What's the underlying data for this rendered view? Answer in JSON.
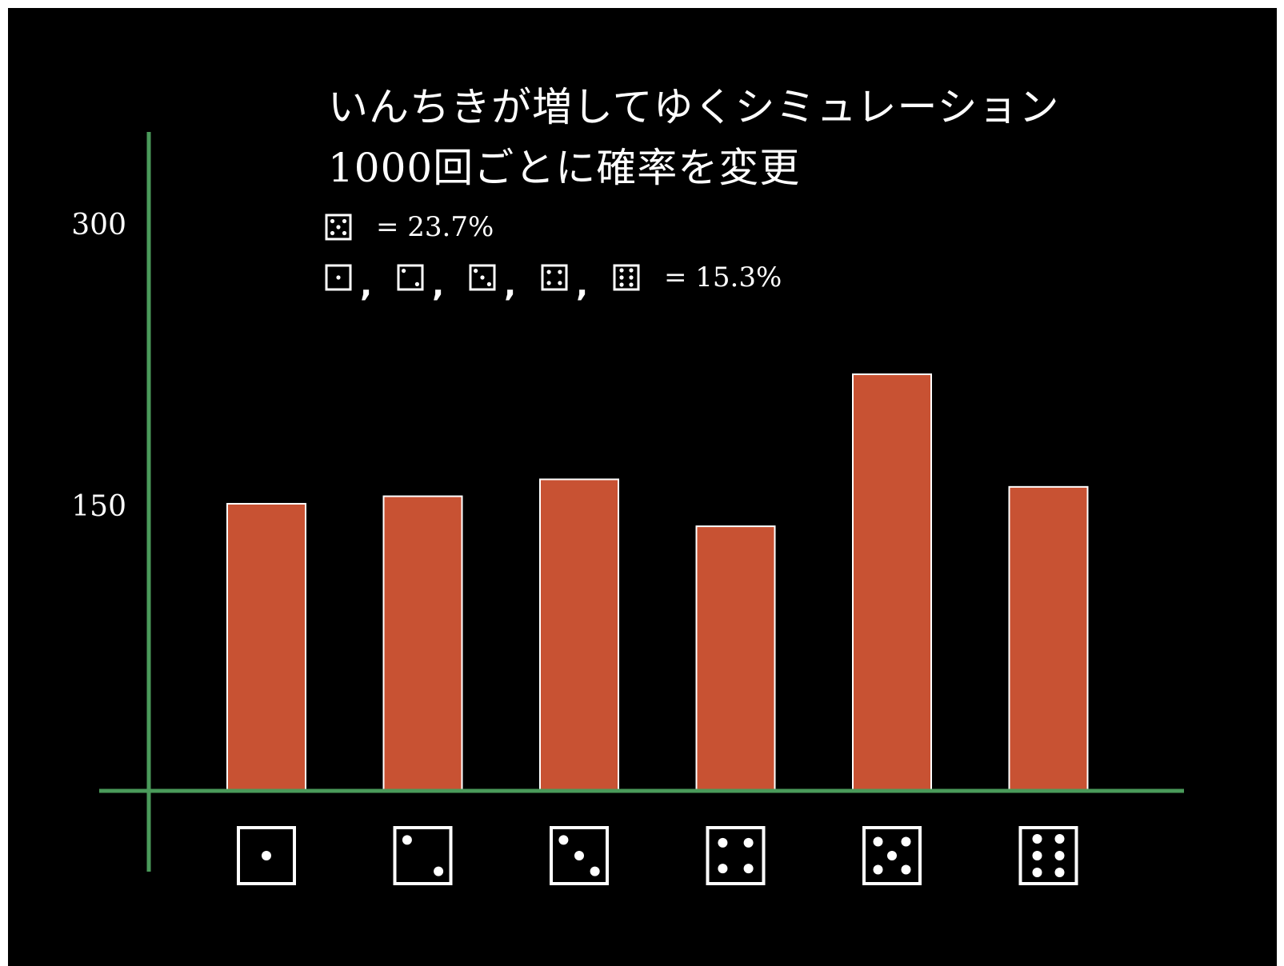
{
  "title_lines": [
    "いんちきが増してゆくシミュレーション",
    "1000回ごとに確率を変更"
  ],
  "probabilities": [
    {
      "faces": [
        5
      ],
      "text": "= 23.7%"
    },
    {
      "faces": [
        1,
        2,
        3,
        4,
        6
      ],
      "text": "= 15.3%"
    }
  ],
  "colors": {
    "background": "#000000",
    "bar_fill": "#c85233",
    "bar_stroke": "#ffffff",
    "axis": "#4a9a5a",
    "text": "#ffffff"
  },
  "chart_data": {
    "type": "bar",
    "categories": [
      "1",
      "2",
      "3",
      "4",
      "5",
      "6"
    ],
    "category_icons": [
      "die-face-1",
      "die-face-2",
      "die-face-3",
      "die-face-4",
      "die-face-5",
      "die-face-6"
    ],
    "values": [
      153,
      157,
      166,
      141,
      222,
      162
    ],
    "ylim": [
      0,
      300
    ],
    "yticks": [
      150,
      300
    ],
    "ytick_labels": [
      "150",
      "300"
    ],
    "grid": false,
    "xlabel": "",
    "ylabel": ""
  }
}
